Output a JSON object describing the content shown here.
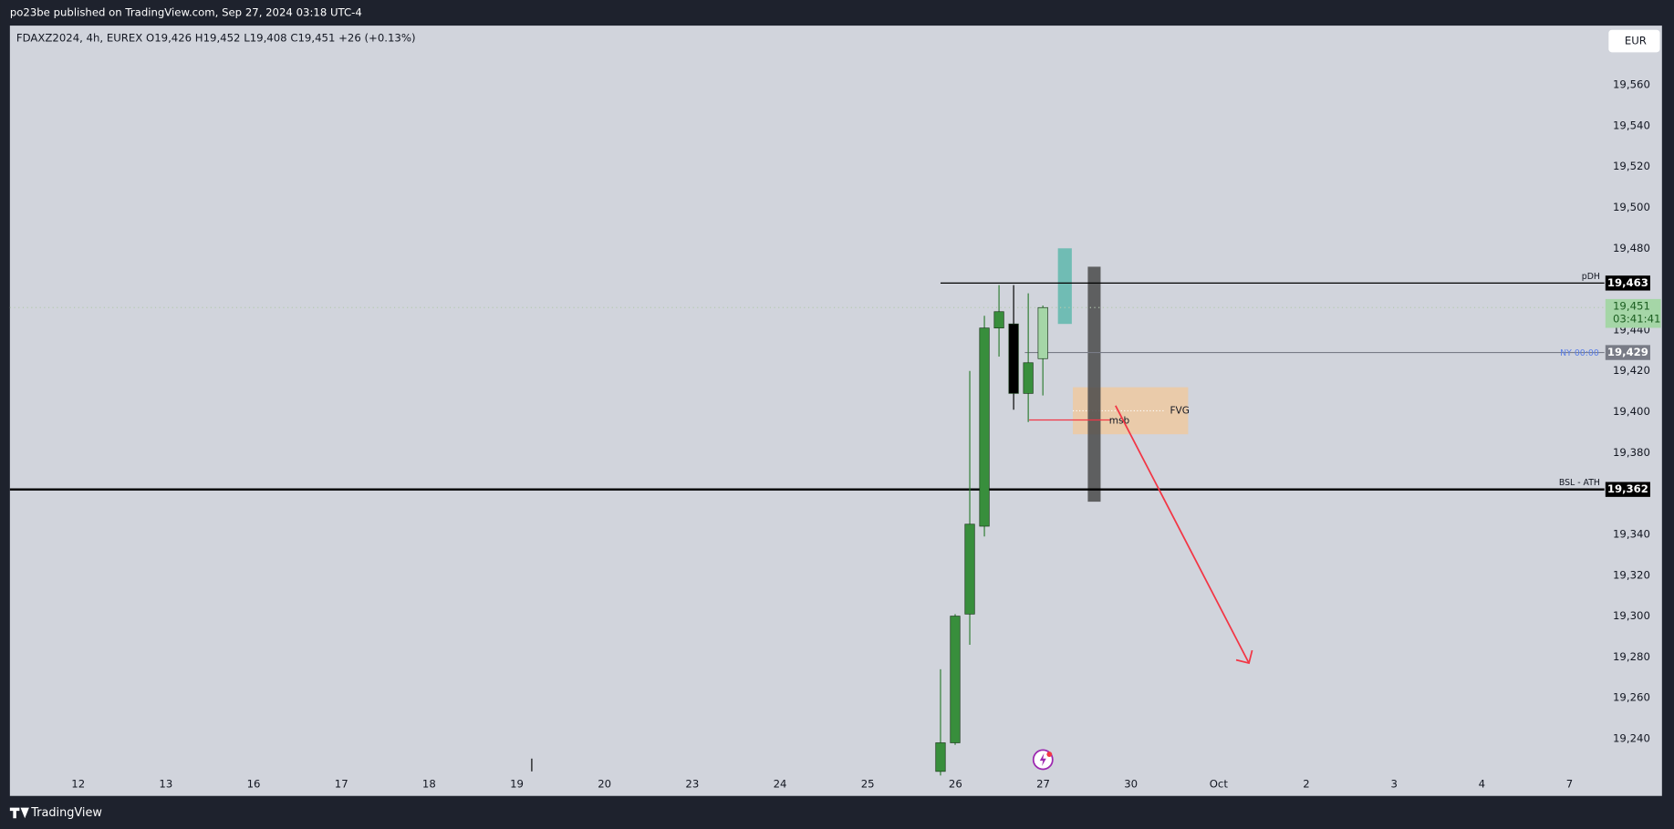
{
  "header": {
    "publisher": "po23be published on TradingView.com, Sep 27, 2024 03:18 UTC-4",
    "brand": "TradingView"
  },
  "chart_data": {
    "type": "candlestick",
    "legend": "FDAXZ2024, 4h, EUREX  O19,426  H19,452  L19,408  C19,451  +26 (+0.13%)",
    "currency": "EUR",
    "x": [
      null,
      null,
      null,
      null,
      null,
      null,
      null,
      null
    ],
    "open": [
      19224,
      19238,
      19301,
      19344,
      19441,
      19443,
      19409,
      19426
    ],
    "high": [
      19274,
      19301,
      19420,
      19447,
      19462,
      19462,
      19458,
      19452
    ],
    "low": [
      19222,
      19237,
      19286,
      19339,
      19427,
      19401,
      19395,
      19408
    ],
    "close": [
      19238,
      19300,
      19345,
      19441,
      19449,
      19409,
      19424,
      19451
    ],
    "colors": [
      "#388e3c",
      "#388e3c",
      "#388e3c",
      "#388e3c",
      "#388e3c",
      "#000000",
      "#388e3c",
      "#a5d6a7"
    ],
    "xtick_labels": [
      "12",
      "13",
      "16",
      "17",
      "18",
      "19",
      "20",
      "23",
      "24",
      "25",
      "26",
      "27",
      "30",
      "Oct",
      "2",
      "3",
      "4",
      "7"
    ],
    "ylim": [
      19212,
      19589
    ],
    "yticks": [
      {
        "value": 19240,
        "label": "19,240"
      },
      {
        "value": 19260,
        "label": "19,260"
      },
      {
        "value": 19280,
        "label": "19,280"
      },
      {
        "value": 19300,
        "label": "19,300"
      },
      {
        "value": 19320,
        "label": "19,320"
      },
      {
        "value": 19340,
        "label": "19,340"
      },
      {
        "value": 19380,
        "label": "19,380"
      },
      {
        "value": 19400,
        "label": "19,400"
      },
      {
        "value": 19420,
        "label": "19,420"
      },
      {
        "value": 19440,
        "label": "19,440"
      },
      {
        "value": 19480,
        "label": "19,480"
      },
      {
        "value": 19500,
        "label": "19,500"
      },
      {
        "value": 19520,
        "label": "19,520"
      },
      {
        "value": 19540,
        "label": "19,540"
      },
      {
        "value": 19560,
        "label": "19,560"
      }
    ],
    "hlines": [
      {
        "label": "pDH",
        "value": 19463,
        "value_label": "19,463",
        "color": "#000000",
        "box": "#000000"
      },
      {
        "label": "NY 00:00",
        "value": 19429,
        "value_label": "19,429",
        "color": "#787b86",
        "box": "#787b86"
      },
      {
        "label": "BSL - ATH",
        "value": 19362,
        "value_label": "19,362",
        "color": "#000000",
        "box": "#000000"
      }
    ],
    "last_price": {
      "value": 19451,
      "value_label": "19,451",
      "countdown": "03:41:41",
      "color": "#a5d6a7"
    },
    "zones": [
      {
        "top": 19480,
        "bottom": 19443,
        "color": "#5fb7ad"
      },
      {
        "label": "FVG",
        "top": 19412,
        "bottom": 19389,
        "color": "#f2c89a"
      },
      {
        "top": 19471,
        "bottom": 19356,
        "color": "#4a4a4a"
      }
    ],
    "msb": {
      "label": "msb",
      "value": 19396,
      "color": "#f23645"
    },
    "arrow": {
      "from": 19403,
      "to": 19277,
      "color": "#f23645"
    }
  }
}
